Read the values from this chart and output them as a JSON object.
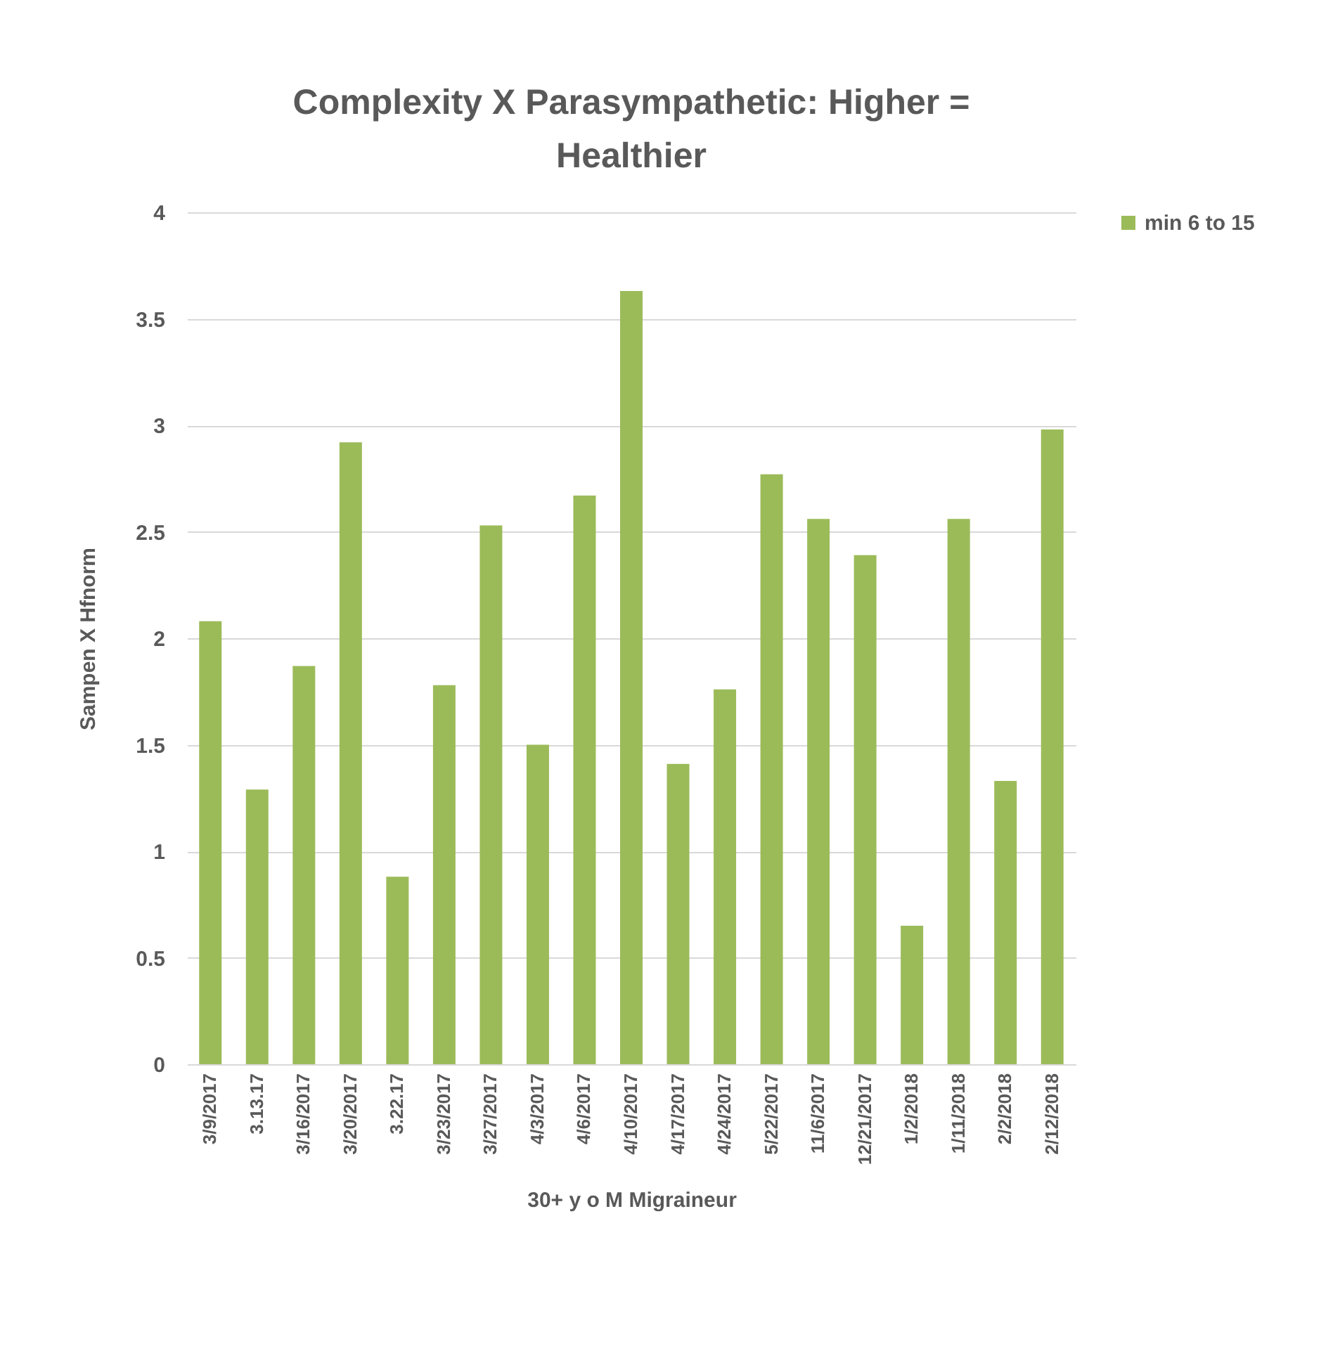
{
  "chart_data": {
    "type": "bar",
    "title": "Complexity X Parasympathetic: Higher = Healthier",
    "xlabel": "30+ y o M Migraineur",
    "ylabel": "Sampen X Hfnorm",
    "categories": [
      "3/9/2017",
      "3.13.17",
      "3/16/2017",
      "3/20/2017",
      "3.22.17",
      "3/23/2017",
      "3/27/2017",
      "4/3/2017",
      "4/6/2017",
      "4/10/2017",
      "4/17/2017",
      "4/24/2017",
      "5/22/2017",
      "11/6/2017",
      "12/21/2017",
      "1/2/2018",
      "1/11/2018",
      "2/2/2018",
      "2/12/2018"
    ],
    "series": [
      {
        "name": "min 6 to 15",
        "color": "#9bbb59",
        "values": [
          2.08,
          1.29,
          1.87,
          2.92,
          0.88,
          1.78,
          2.53,
          1.5,
          2.67,
          3.63,
          1.41,
          1.76,
          2.77,
          2.56,
          2.39,
          0.65,
          2.56,
          1.33,
          2.98
        ]
      }
    ],
    "ylim": [
      0,
      4
    ],
    "yticks": [
      0,
      0.5,
      1,
      1.5,
      2,
      2.5,
      3,
      3.5,
      4
    ],
    "grid": "y",
    "legend": "right"
  }
}
